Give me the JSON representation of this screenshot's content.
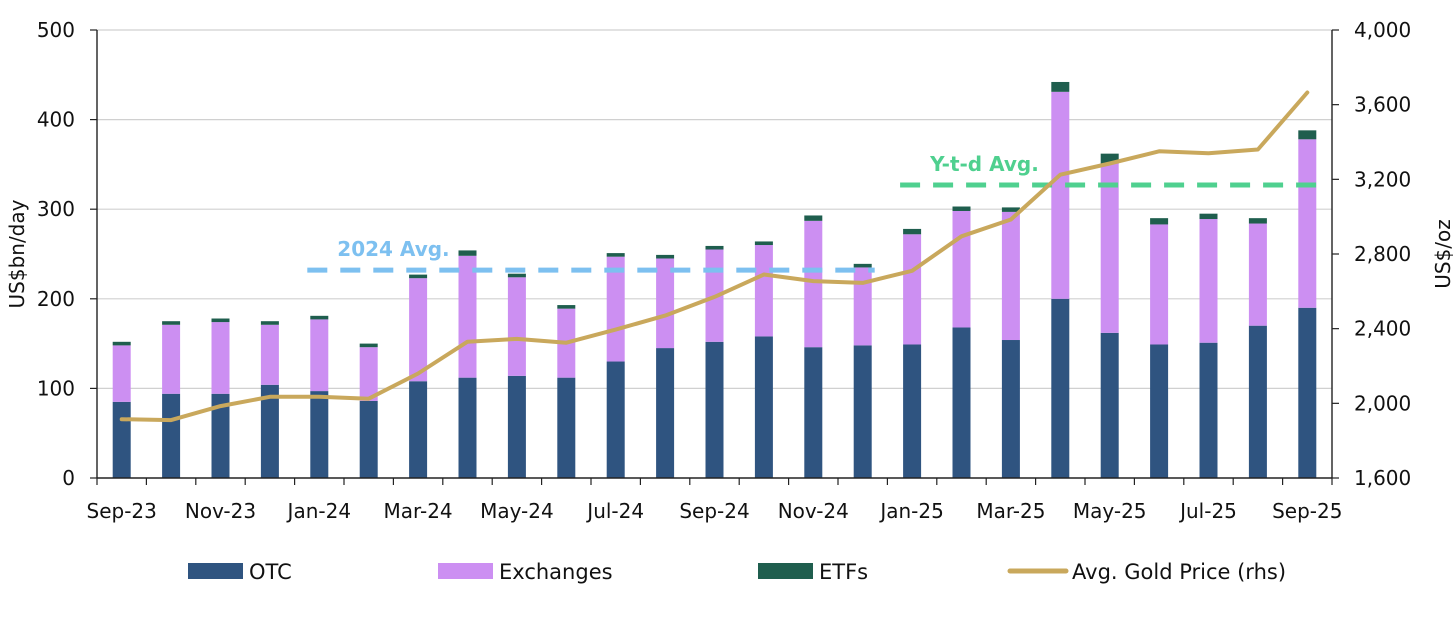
{
  "chart_data": {
    "type": "bar",
    "stacked": true,
    "categories": [
      "Sep-23",
      "Oct-23",
      "Nov-23",
      "Dec-23",
      "Jan-24",
      "Feb-24",
      "Mar-24",
      "Apr-24",
      "May-24",
      "Jun-24",
      "Jul-24",
      "Aug-24",
      "Sep-24",
      "Oct-24",
      "Nov-24",
      "Dec-24",
      "Jan-25",
      "Feb-25",
      "Mar-25",
      "Apr-25",
      "May-25",
      "Jun-25",
      "Jul-25",
      "Aug-25",
      "Sep-25"
    ],
    "x_tick_labels": [
      "Sep-23",
      "Nov-23",
      "Jan-24",
      "Mar-24",
      "May-24",
      "Jul-24",
      "Sep-24",
      "Nov-24",
      "Jan-25",
      "Mar-25",
      "May-25",
      "Jul-25",
      "Sep-25"
    ],
    "series": [
      {
        "name": "OTC",
        "axis": "left",
        "color": "#2f5480",
        "values": [
          85,
          94,
          94,
          104,
          97,
          86,
          108,
          112,
          114,
          112,
          130,
          145,
          152,
          158,
          146,
          148,
          149,
          168,
          154,
          200,
          162,
          149,
          151,
          170,
          190
        ]
      },
      {
        "name": "Exchanges",
        "axis": "left",
        "color": "#cc8ff2",
        "values": [
          63,
          77,
          80,
          67,
          80,
          60,
          115,
          136,
          110,
          77,
          117,
          100,
          103,
          102,
          141,
          87,
          123,
          130,
          143,
          231,
          189,
          134,
          138,
          114,
          188
        ]
      },
      {
        "name": "ETFs",
        "axis": "left",
        "color": "#1f5e4e",
        "values": [
          4,
          4,
          4,
          4,
          4,
          4,
          4,
          6,
          4,
          4,
          4,
          4,
          4,
          4,
          6,
          4,
          6,
          5,
          5,
          11,
          11,
          7,
          6,
          6,
          10
        ]
      },
      {
        "name": "Avg. Gold Price (rhs)",
        "axis": "right",
        "type": "line",
        "color": "#c9a85c",
        "values": [
          1915,
          1910,
          1985,
          2035,
          2035,
          2025,
          2160,
          2330,
          2345,
          2325,
          2395,
          2470,
          2570,
          2690,
          2655,
          2645,
          2710,
          2895,
          2985,
          3225,
          3285,
          3350,
          3340,
          3360,
          3665
        ]
      }
    ],
    "reference_lines": [
      {
        "label": "2024 Avg.",
        "value": 232,
        "axis": "left",
        "from": "Jan-24",
        "to": "Dec-24",
        "color": "#7dc0f0"
      },
      {
        "label": "Y-t-d Avg.",
        "value": 327,
        "axis": "left",
        "from": "Jan-25",
        "to": "Sep-25",
        "color": "#4fd08f"
      }
    ],
    "y_left": {
      "label": "US$bn/day",
      "lim": [
        0,
        500
      ],
      "ticks": [
        "0",
        "100",
        "200",
        "300",
        "400",
        "500"
      ]
    },
    "y_right": {
      "label": "US$/oz",
      "lim": [
        1600,
        4000
      ],
      "ticks": [
        "1,600",
        "2,000",
        "2,400",
        "2,800",
        "3,200",
        "3,600",
        "4,000"
      ]
    },
    "grid": "horizontal",
    "legend": "bottom"
  }
}
